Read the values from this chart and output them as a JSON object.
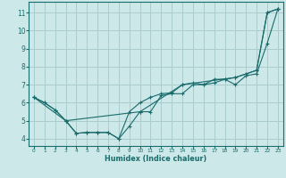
{
  "title": "",
  "xlabel": "Humidex (Indice chaleur)",
  "background_color": "#cce8e8",
  "grid_color": "#aacccc",
  "line_color": "#1a6b6b",
  "xlim": [
    -0.5,
    23.5
  ],
  "ylim": [
    3.6,
    11.6
  ],
  "xticks": [
    0,
    1,
    2,
    3,
    4,
    5,
    6,
    7,
    8,
    9,
    10,
    11,
    12,
    13,
    14,
    15,
    16,
    17,
    18,
    19,
    20,
    21,
    22,
    23
  ],
  "yticks": [
    4,
    5,
    6,
    7,
    8,
    9,
    10,
    11
  ],
  "series1_x": [
    0,
    1,
    2,
    3,
    4,
    5,
    6,
    7,
    8,
    9,
    10,
    11,
    12,
    13,
    14,
    15,
    16,
    17,
    18,
    19,
    20,
    21,
    22,
    23
  ],
  "series1_y": [
    6.3,
    6.0,
    5.6,
    5.0,
    4.3,
    4.35,
    4.35,
    4.35,
    4.0,
    4.7,
    5.5,
    5.5,
    6.4,
    6.5,
    6.5,
    7.0,
    7.0,
    7.1,
    7.3,
    7.0,
    7.5,
    7.6,
    9.3,
    11.2
  ],
  "series2_x": [
    0,
    1,
    2,
    3,
    4,
    5,
    6,
    7,
    8,
    9,
    10,
    11,
    12,
    13,
    14,
    15,
    16,
    17,
    18,
    19,
    20,
    21,
    22,
    23
  ],
  "series2_y": [
    6.3,
    6.0,
    5.6,
    5.0,
    4.3,
    4.35,
    4.35,
    4.35,
    4.0,
    5.5,
    6.0,
    6.3,
    6.5,
    6.55,
    7.0,
    7.1,
    7.0,
    7.3,
    7.3,
    7.4,
    7.6,
    7.8,
    11.0,
    11.2
  ],
  "series3_x": [
    0,
    3,
    10,
    14,
    19,
    21,
    22,
    23
  ],
  "series3_y": [
    6.3,
    5.0,
    5.5,
    7.0,
    7.4,
    7.8,
    11.0,
    11.2
  ]
}
